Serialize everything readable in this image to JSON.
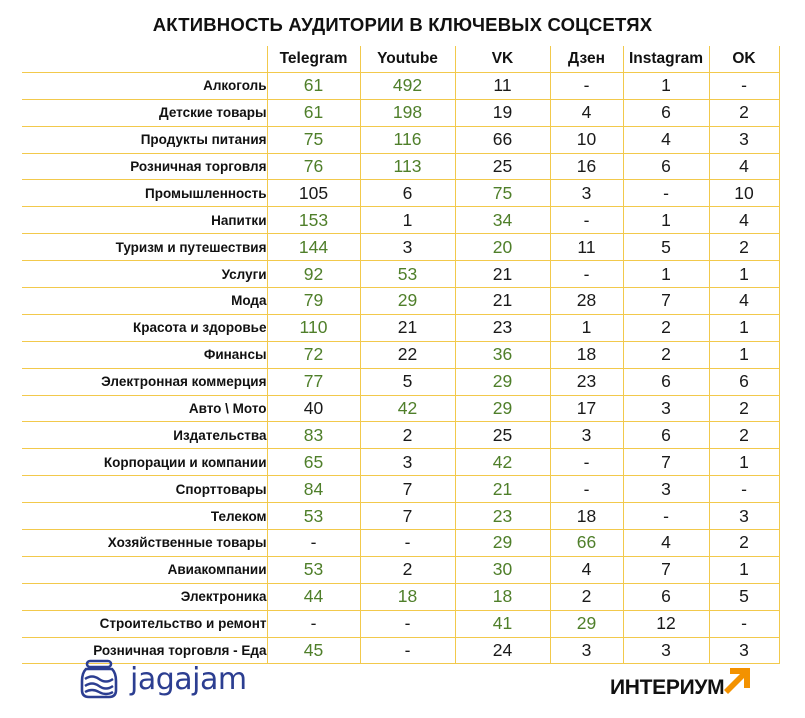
{
  "title": "АКТИВНОСТЬ АУДИТОРИИ В КЛЮЧЕВЫХ СОЦСЕТЯХ",
  "columns": [
    "Telegram",
    "Youtube",
    "VK",
    "Дзен",
    "Instagram",
    "OK"
  ],
  "colors": {
    "highlight": "#4f7f2a",
    "normal": "#1a1a1a",
    "border": "#f2c94c",
    "arrow": "#f39200",
    "jagajam": "#2c3e91"
  },
  "rows": [
    {
      "label": "Алкоголь",
      "values": [
        "61",
        "492",
        "11",
        "-",
        "1",
        "-"
      ],
      "hi": [
        true,
        true,
        false,
        false,
        false,
        false
      ]
    },
    {
      "label": "Детские товары",
      "values": [
        "61",
        "198",
        "19",
        "4",
        "6",
        "2"
      ],
      "hi": [
        true,
        true,
        false,
        false,
        false,
        false
      ]
    },
    {
      "label": "Продукты питания",
      "values": [
        "75",
        "116",
        "66",
        "10",
        "4",
        "3"
      ],
      "hi": [
        true,
        true,
        false,
        false,
        false,
        false
      ]
    },
    {
      "label": "Розничная торговля",
      "values": [
        "76",
        "113",
        "25",
        "16",
        "6",
        "4"
      ],
      "hi": [
        true,
        true,
        false,
        false,
        false,
        false
      ]
    },
    {
      "label": "Промышленность",
      "values": [
        "105",
        "6",
        "75",
        "3",
        "-",
        "10"
      ],
      "hi": [
        false,
        false,
        true,
        false,
        false,
        false
      ]
    },
    {
      "label": "Напитки",
      "values": [
        "153",
        "1",
        "34",
        "-",
        "1",
        "4"
      ],
      "hi": [
        true,
        false,
        true,
        false,
        false,
        false
      ]
    },
    {
      "label": "Туризм и путешествия",
      "values": [
        "144",
        "3",
        "20",
        "11",
        "5",
        "2"
      ],
      "hi": [
        true,
        false,
        true,
        false,
        false,
        false
      ]
    },
    {
      "label": "Услуги",
      "values": [
        "92",
        "53",
        "21",
        "-",
        "1",
        "1"
      ],
      "hi": [
        true,
        true,
        false,
        false,
        false,
        false
      ]
    },
    {
      "label": "Мода",
      "values": [
        "79",
        "29",
        "21",
        "28",
        "7",
        "4"
      ],
      "hi": [
        true,
        true,
        false,
        false,
        false,
        false
      ]
    },
    {
      "label": "Красота и здоровье",
      "values": [
        "110",
        "21",
        "23",
        "1",
        "2",
        "1"
      ],
      "hi": [
        true,
        false,
        false,
        false,
        false,
        false
      ]
    },
    {
      "label": "Финансы",
      "values": [
        "72",
        "22",
        "36",
        "18",
        "2",
        "1"
      ],
      "hi": [
        true,
        false,
        true,
        false,
        false,
        false
      ]
    },
    {
      "label": "Электронная коммерция",
      "values": [
        "77",
        "5",
        "29",
        "23",
        "6",
        "6"
      ],
      "hi": [
        true,
        false,
        true,
        false,
        false,
        false
      ]
    },
    {
      "label": "Авто \\ Мото",
      "values": [
        "40",
        "42",
        "29",
        "17",
        "3",
        "2"
      ],
      "hi": [
        false,
        true,
        true,
        false,
        false,
        false
      ]
    },
    {
      "label": "Издательства",
      "values": [
        "83",
        "2",
        "25",
        "3",
        "6",
        "2"
      ],
      "hi": [
        true,
        false,
        false,
        false,
        false,
        false
      ]
    },
    {
      "label": "Корпорации и компании",
      "values": [
        "65",
        "3",
        "42",
        "-",
        "7",
        "1"
      ],
      "hi": [
        true,
        false,
        true,
        false,
        false,
        false
      ]
    },
    {
      "label": "Спорттовары",
      "values": [
        "84",
        "7",
        "21",
        "-",
        "3",
        "-"
      ],
      "hi": [
        true,
        false,
        true,
        false,
        false,
        false
      ]
    },
    {
      "label": "Телеком",
      "values": [
        "53",
        "7",
        "23",
        "18",
        "-",
        "3"
      ],
      "hi": [
        true,
        false,
        true,
        false,
        false,
        false
      ]
    },
    {
      "label": "Хозяйственные товары",
      "values": [
        "-",
        "-",
        "29",
        "66",
        "4",
        "2"
      ],
      "hi": [
        false,
        false,
        true,
        true,
        false,
        false
      ]
    },
    {
      "label": "Авиакомпании",
      "values": [
        "53",
        "2",
        "30",
        "4",
        "7",
        "1"
      ],
      "hi": [
        true,
        false,
        true,
        false,
        false,
        false
      ]
    },
    {
      "label": "Электроника",
      "values": [
        "44",
        "18",
        "18",
        "2",
        "6",
        "5"
      ],
      "hi": [
        true,
        true,
        true,
        false,
        false,
        false
      ]
    },
    {
      "label": "Строительство и ремонт",
      "values": [
        "-",
        "-",
        "41",
        "29",
        "12",
        "-"
      ],
      "hi": [
        false,
        false,
        true,
        true,
        false,
        false
      ]
    },
    {
      "label": "Розничная торговля - Еда",
      "values": [
        "45",
        "-",
        "24",
        "3",
        "3",
        "3"
      ],
      "hi": [
        true,
        false,
        false,
        false,
        false,
        false
      ]
    }
  ],
  "logos": {
    "left": "jagajam",
    "right": "ИНТЕРИУМ"
  }
}
